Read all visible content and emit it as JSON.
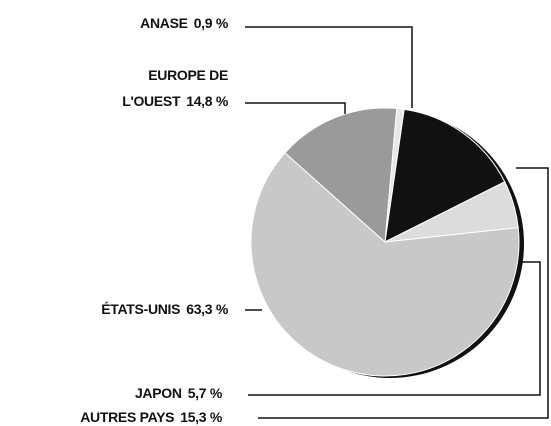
{
  "chart_data": {
    "type": "pie",
    "categories": [
      "ANASE",
      "AUTRES PAYS",
      "JAPON",
      "ÉTATS-UNIS",
      "EUROPE DE L'OUEST"
    ],
    "values": [
      0.9,
      15.3,
      5.7,
      63.3,
      14.8
    ],
    "value_labels": [
      "0,9 %",
      "15,3 %",
      "5,7 %",
      "63,3 %",
      "14,8 %"
    ],
    "colors": [
      "#e8e8e8",
      "#111111",
      "#dcdcdc",
      "#c8c8c8",
      "#9a9a9a"
    ]
  }
}
